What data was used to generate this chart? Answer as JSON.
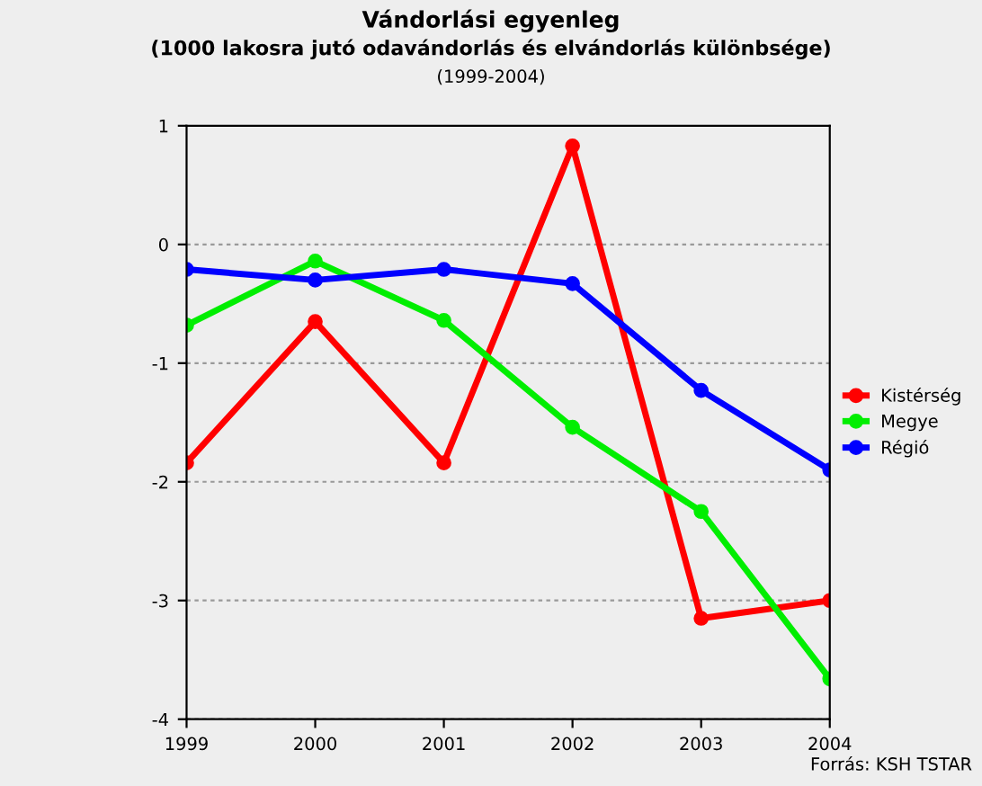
{
  "chart_data": {
    "type": "line",
    "title": "Vándorlási egyenleg",
    "subtitle": "(1000 lakosra jutó odavándorlás és elvándorlás különbsége)",
    "annotations": [
      "(1999-2004)",
      "Forrás: KSH TSTAR"
    ],
    "categories": [
      "1999",
      "2000",
      "2001",
      "2002",
      "2003",
      "2004"
    ],
    "series": [
      {
        "name": "Kistérség",
        "color": "#ff0000",
        "values": [
          -1.84,
          -0.65,
          -1.84,
          0.83,
          -3.15,
          -3.0
        ]
      },
      {
        "name": "Megye",
        "color": "#00ee00",
        "values": [
          -0.68,
          -0.14,
          -0.64,
          -1.54,
          -2.25,
          -3.66
        ]
      },
      {
        "name": "Régió",
        "color": "#0000ff",
        "values": [
          -0.21,
          -0.3,
          -0.21,
          -0.33,
          -1.23,
          -1.9
        ]
      }
    ],
    "ylim": [
      -4,
      1
    ],
    "yticks": [
      -4,
      -3,
      -2,
      -1,
      0,
      1
    ],
    "grid": "y",
    "legend": "right",
    "marker": "circle",
    "line_style": "solid"
  }
}
